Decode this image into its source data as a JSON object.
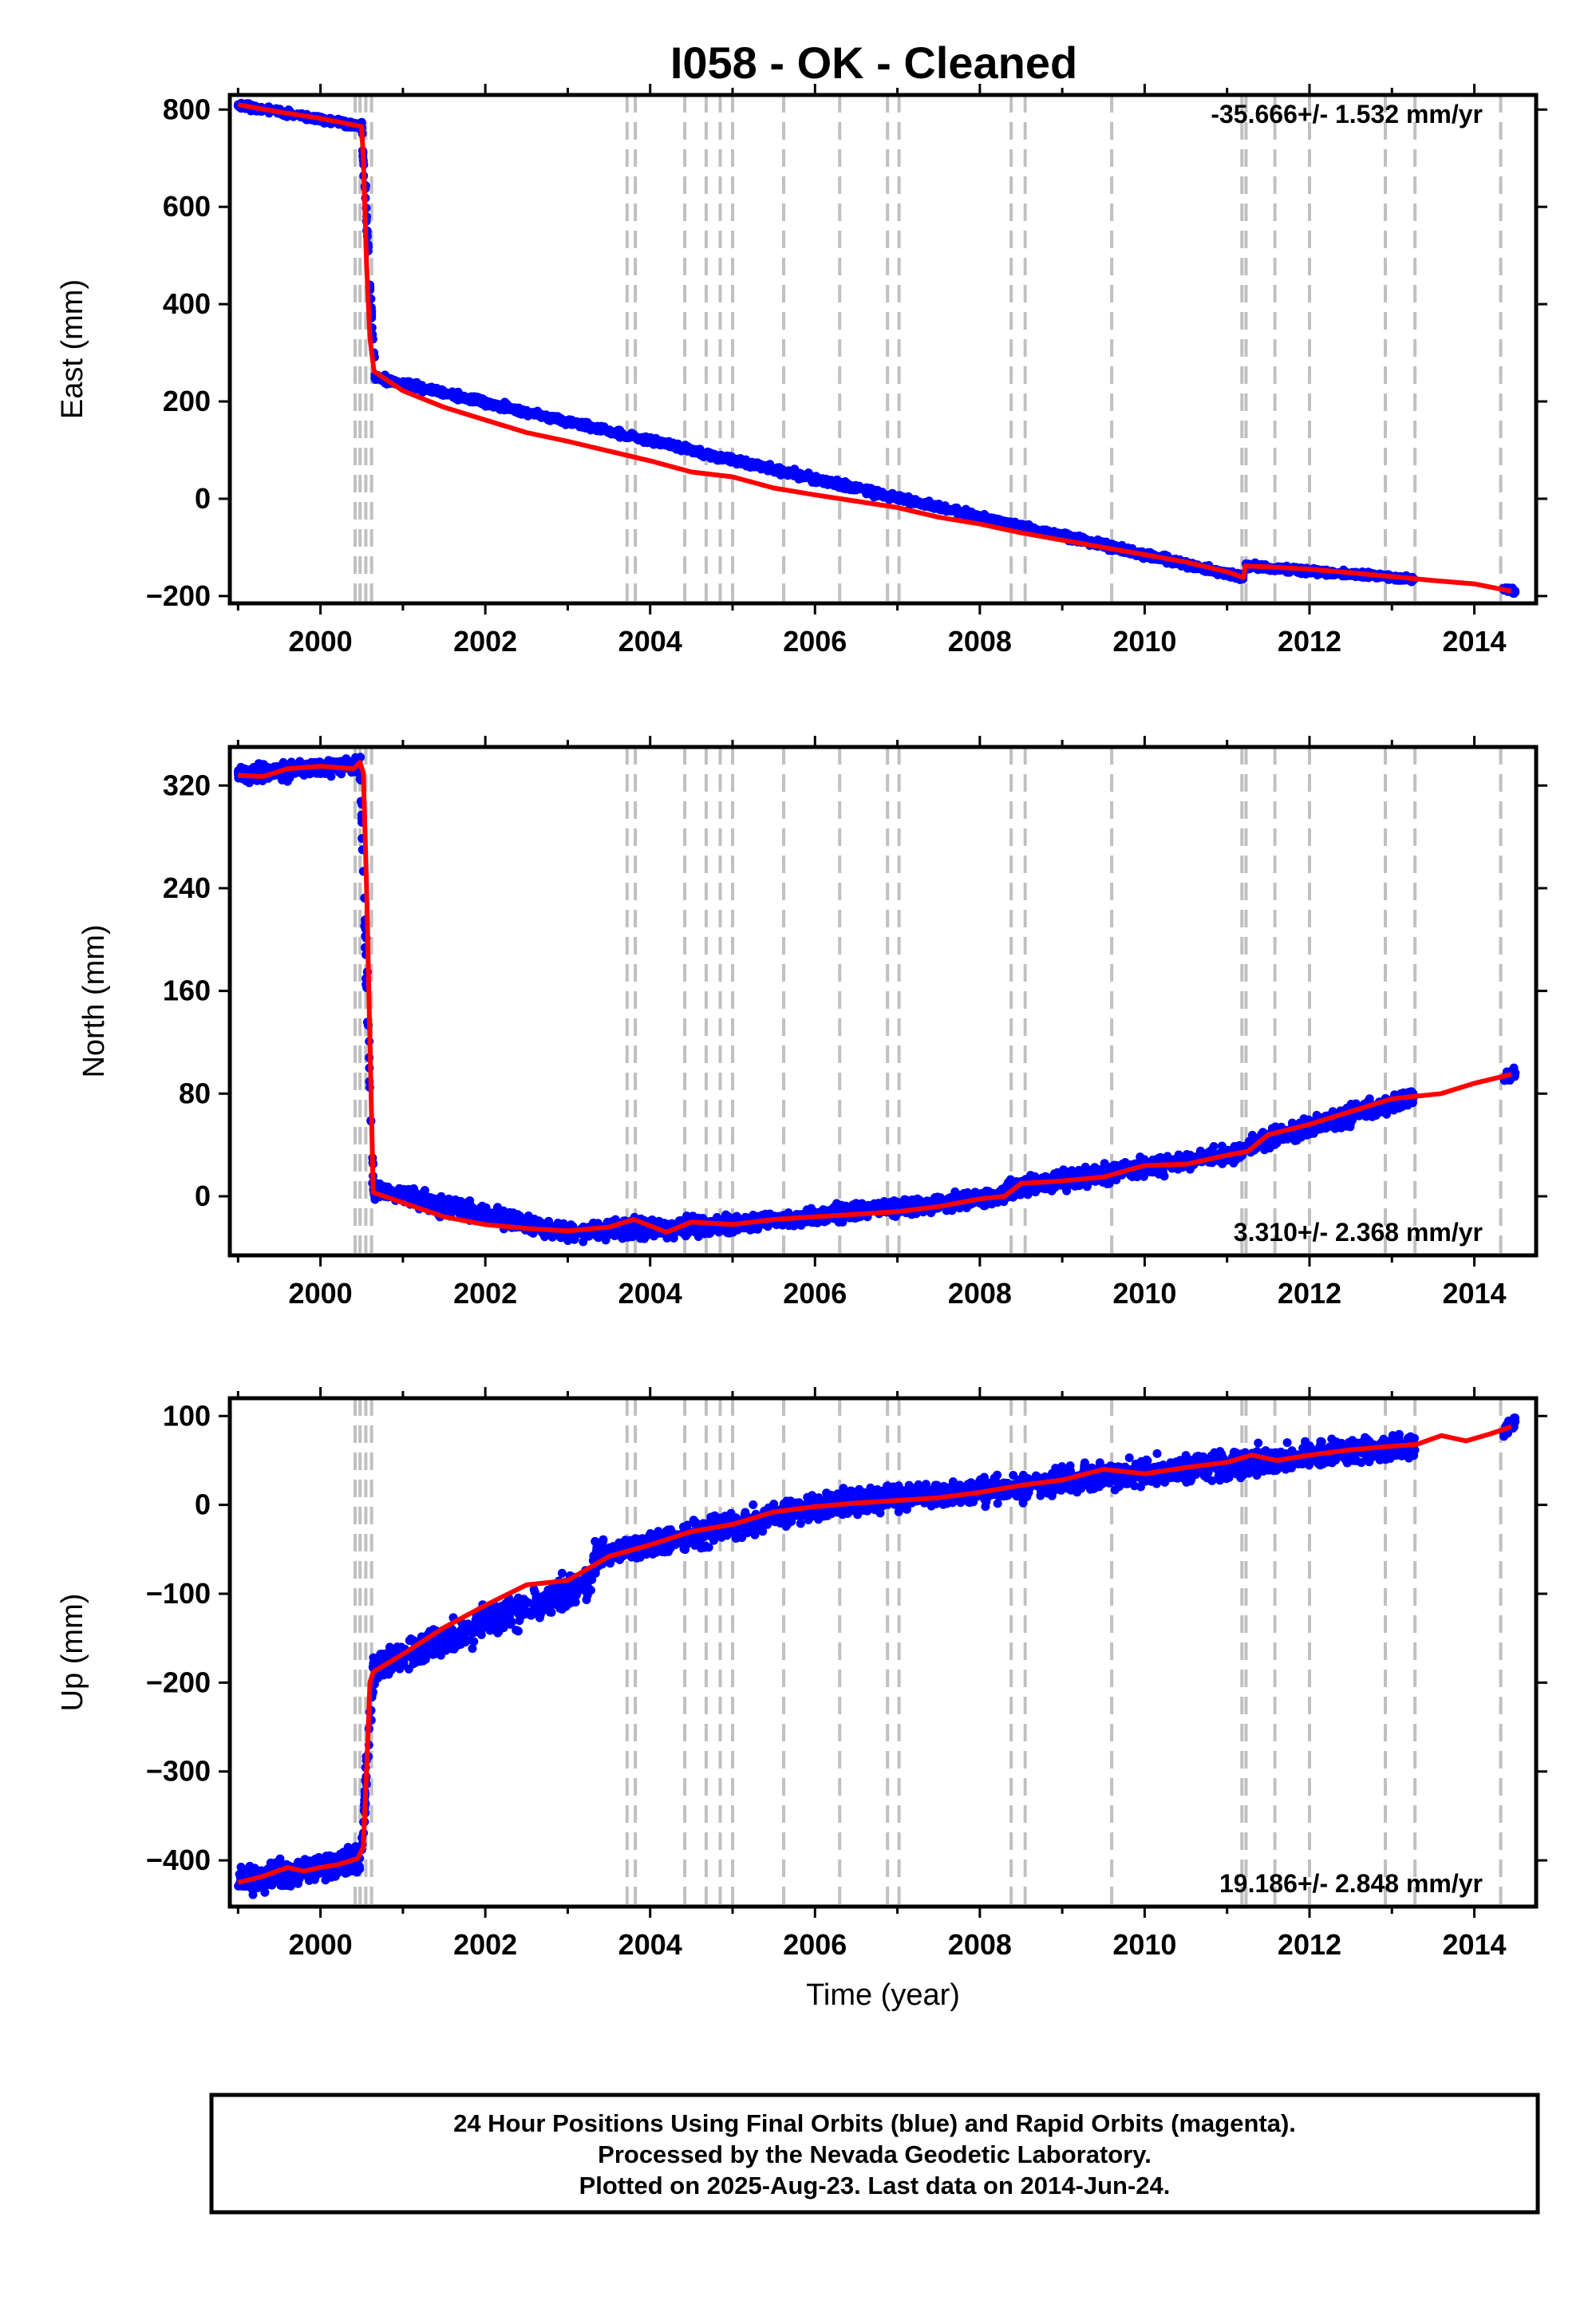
{
  "title": "I058  - OK - Cleaned",
  "colors": {
    "data": "#0000ff",
    "model": "#ff0000",
    "event_line": "#c0c0c0",
    "frame": "#000000"
  },
  "x_axis": {
    "label": "Time (year)",
    "ticks": [
      "2000",
      "2002",
      "2004",
      "2006",
      "2008",
      "2010",
      "2012",
      "2014"
    ],
    "range": [
      1998.9,
      2014.75
    ]
  },
  "event_lines": [
    2000.42,
    2000.48,
    2000.55,
    2000.62,
    2003.72,
    2003.82,
    2004.42,
    2004.68,
    2004.85,
    2005.0,
    2005.62,
    2006.3,
    2006.88,
    2007.02,
    2008.38,
    2008.55,
    2009.6,
    2011.18,
    2011.23,
    2011.58,
    2012.0,
    2012.92,
    2013.28,
    2014.32
  ],
  "chart_data": [
    {
      "type": "scatter",
      "name": "East",
      "ylabel": "East (mm)",
      "yticks": [
        "800",
        "600",
        "400",
        "200",
        "0",
        "−200"
      ],
      "ylim": [
        -215,
        830
      ],
      "rate_text": "-35.666+/- 1.532 mm/yr",
      "rate_position": "top-right",
      "model_x": [
        1999.0,
        1999.5,
        2000.0,
        2000.3,
        2000.5,
        2000.52,
        2000.56,
        2000.6,
        2000.65,
        2001.0,
        2001.5,
        2002.0,
        2002.5,
        2003.0,
        2003.5,
        2004.0,
        2004.5,
        2005.0,
        2005.5,
        2006.0,
        2006.5,
        2007.0,
        2007.5,
        2008.0,
        2008.5,
        2009.0,
        2009.5,
        2010.0,
        2010.5,
        2011.0,
        2011.2,
        2011.22,
        2011.5,
        2012.0,
        2012.5,
        2013.0,
        2013.5,
        2014.0,
        2014.45
      ],
      "model_y": [
        810,
        795,
        782,
        772,
        765,
        700,
        480,
        330,
        262,
        222,
        188,
        162,
        136,
        118,
        98,
        78,
        55,
        45,
        22,
        8,
        -5,
        -18,
        -38,
        -52,
        -70,
        -85,
        -100,
        -115,
        -130,
        -150,
        -162,
        -138,
        -140,
        -145,
        -152,
        -160,
        -168,
        -175,
        -190
      ],
      "cloud": [
        {
          "x0": 1999.0,
          "x1": 2000.5,
          "y0": 810,
          "y1": 765,
          "spread": 6
        },
        {
          "x0": 2000.5,
          "x1": 2000.66,
          "y0": 765,
          "y1": 250,
          "spread": 25
        },
        {
          "x0": 2000.66,
          "x1": 2011.2,
          "y0": 250,
          "y1": -162,
          "spread": 7
        },
        {
          "x0": 2011.22,
          "x1": 2013.28,
          "y0": -138,
          "y1": -165,
          "spread": 6
        },
        {
          "x0": 2014.35,
          "x1": 2014.5,
          "y0": -185,
          "y1": -192,
          "spread": 5
        }
      ]
    },
    {
      "type": "scatter",
      "name": "North",
      "ylabel": "North (mm)",
      "yticks": [
        "320",
        "240",
        "160",
        "80",
        "0"
      ],
      "ylim": [
        -46,
        350
      ],
      "rate_text": "3.310+/- 2.368 mm/yr",
      "rate_position": "bottom-right",
      "model_x": [
        1999.0,
        1999.3,
        1999.6,
        2000.0,
        2000.4,
        2000.48,
        2000.52,
        2000.56,
        2000.6,
        2000.64,
        2001.0,
        2001.5,
        2002.0,
        2002.5,
        2003.0,
        2003.5,
        2003.8,
        2004.2,
        2004.5,
        2005.0,
        2005.5,
        2006.0,
        2006.5,
        2007.0,
        2007.5,
        2008.0,
        2008.3,
        2008.5,
        2009.0,
        2009.5,
        2010.0,
        2010.5,
        2011.0,
        2011.25,
        2011.5,
        2012.0,
        2012.5,
        2013.0,
        2013.3,
        2013.6,
        2014.0,
        2014.45
      ],
      "model_y": [
        328,
        327,
        333,
        335,
        333,
        338,
        330,
        240,
        120,
        3,
        -5,
        -16,
        -22,
        -25,
        -27,
        -24,
        -18,
        -28,
        -20,
        -22,
        -18,
        -16,
        -14,
        -12,
        -8,
        -2,
        0,
        10,
        12,
        15,
        24,
        25,
        32,
        35,
        48,
        56,
        66,
        76,
        78,
        80,
        88,
        95
      ],
      "cloud": [
        {
          "x0": 1999.0,
          "x1": 2000.46,
          "y0": 328,
          "y1": 336,
          "spread": 6
        },
        {
          "x0": 2000.48,
          "x1": 2000.64,
          "y0": 338,
          "y1": 5,
          "spread": 20
        },
        {
          "x0": 2000.64,
          "x1": 2003.0,
          "y0": 5,
          "y1": -28,
          "spread": 7
        },
        {
          "x0": 2003.0,
          "x1": 2005.0,
          "y0": -28,
          "y1": -22,
          "spread": 7
        },
        {
          "x0": 2005.0,
          "x1": 2008.3,
          "y0": -22,
          "y1": 0,
          "spread": 6
        },
        {
          "x0": 2008.3,
          "x1": 2011.2,
          "y0": 5,
          "y1": 35,
          "spread": 7
        },
        {
          "x0": 2011.25,
          "x1": 2013.28,
          "y0": 40,
          "y1": 78,
          "spread": 7
        },
        {
          "x0": 2014.35,
          "x1": 2014.5,
          "y0": 90,
          "y1": 97,
          "spread": 5
        }
      ]
    },
    {
      "type": "scatter",
      "name": "Up",
      "ylabel": "Up (mm)",
      "yticks": [
        "100",
        "0",
        "−100",
        "−200",
        "−300",
        "−400"
      ],
      "ylim": [
        -452,
        120
      ],
      "rate_text": "19.186+/- 2.848 mm/yr",
      "rate_position": "bottom-right",
      "model_x": [
        1999.0,
        1999.3,
        1999.6,
        1999.8,
        2000.0,
        2000.2,
        2000.45,
        2000.52,
        2000.56,
        2000.6,
        2000.64,
        2001.0,
        2001.5,
        2002.0,
        2002.5,
        2003.0,
        2003.5,
        2004.0,
        2004.5,
        2005.0,
        2005.5,
        2006.0,
        2006.5,
        2007.0,
        2007.5,
        2008.0,
        2008.5,
        2009.0,
        2009.5,
        2010.0,
        2010.5,
        2011.0,
        2011.3,
        2011.6,
        2012.0,
        2012.5,
        2013.0,
        2013.3,
        2013.6,
        2013.9,
        2014.2,
        2014.45
      ],
      "model_y": [
        -425,
        -418,
        -408,
        -412,
        -408,
        -405,
        -398,
        -385,
        -300,
        -200,
        -188,
        -168,
        -138,
        -113,
        -90,
        -85,
        -58,
        -45,
        -30,
        -22,
        -8,
        -2,
        2,
        5,
        8,
        14,
        22,
        28,
        40,
        35,
        42,
        48,
        56,
        50,
        56,
        62,
        66,
        68,
        78,
        72,
        80,
        88
      ],
      "cloud": [
        {
          "x0": 1999.0,
          "x1": 2000.48,
          "y0": -425,
          "y1": -400,
          "spread": 14
        },
        {
          "x0": 2000.5,
          "x1": 2000.64,
          "y0": -385,
          "y1": -190,
          "spread": 22
        },
        {
          "x0": 2000.64,
          "x1": 2003.3,
          "y0": -185,
          "y1": -85,
          "spread": 18
        },
        {
          "x0": 2003.3,
          "x1": 2006.0,
          "y0": -60,
          "y1": -2,
          "spread": 14
        },
        {
          "x0": 2006.0,
          "x1": 2009.6,
          "y0": -2,
          "y1": 32,
          "spread": 14
        },
        {
          "x0": 2009.6,
          "x1": 2013.28,
          "y0": 32,
          "y1": 68,
          "spread": 14
        },
        {
          "x0": 2014.35,
          "x1": 2014.5,
          "y0": 80,
          "y1": 95,
          "spread": 8
        }
      ]
    }
  ],
  "notes": [
    "24 Hour Positions Using Final Orbits (blue) and Rapid Orbits (magenta).",
    "Processed by the Nevada Geodetic Laboratory.",
    "Plotted on 2025-Aug-23. Last data on 2014-Jun-24."
  ]
}
